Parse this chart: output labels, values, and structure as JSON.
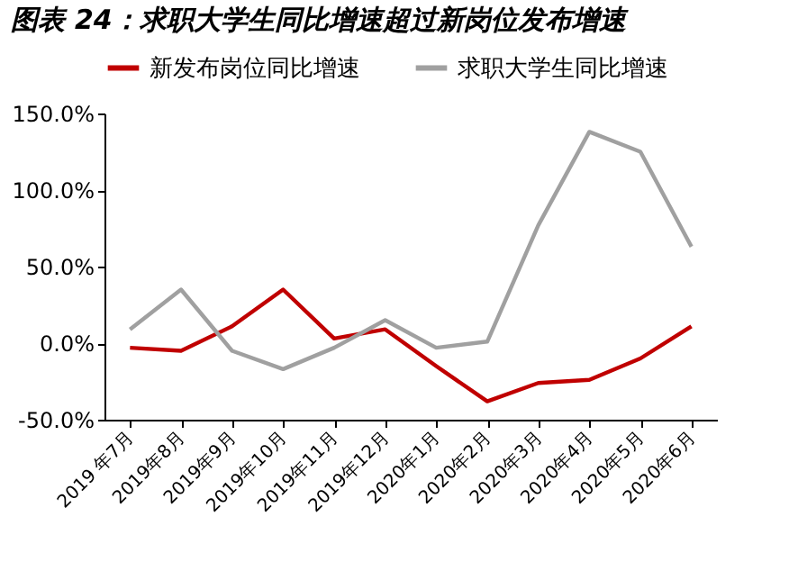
{
  "chart_data": {
    "type": "line",
    "title": "图表 24：求职大学生同比增速超过新岗位发布增速",
    "categories": [
      "2019 年7月",
      "2019年8月",
      "2019年9月",
      "2019年10月",
      "2019年11月",
      "2019年12月",
      "2020年1月",
      "2020年2月",
      "2020年3月",
      "2020年4月",
      "2020年5月",
      "2020年6月"
    ],
    "series": [
      {
        "name": "新发布岗位同比增速",
        "color": "#c00000",
        "values": [
          -3,
          -5,
          11,
          35,
          3,
          9,
          -15,
          -38,
          -26,
          -24,
          -10,
          11
        ]
      },
      {
        "name": "求职大学生同比增速",
        "color": "#a0a0a0",
        "values": [
          9,
          35,
          -5,
          -17,
          -3,
          15,
          -3,
          1,
          77,
          138,
          125,
          63
        ]
      }
    ],
    "ylim": [
      -50,
      150
    ],
    "yticks": [
      {
        "value": -50,
        "label": "-50.0%"
      },
      {
        "value": 0,
        "label": "0.0%"
      },
      {
        "value": 50,
        "label": "50.0%"
      },
      {
        "value": 100,
        "label": "100.0%"
      },
      {
        "value": 150,
        "label": "150.0%"
      }
    ],
    "legend": "top",
    "grid": false,
    "marker": "none",
    "line_style": "solid"
  }
}
